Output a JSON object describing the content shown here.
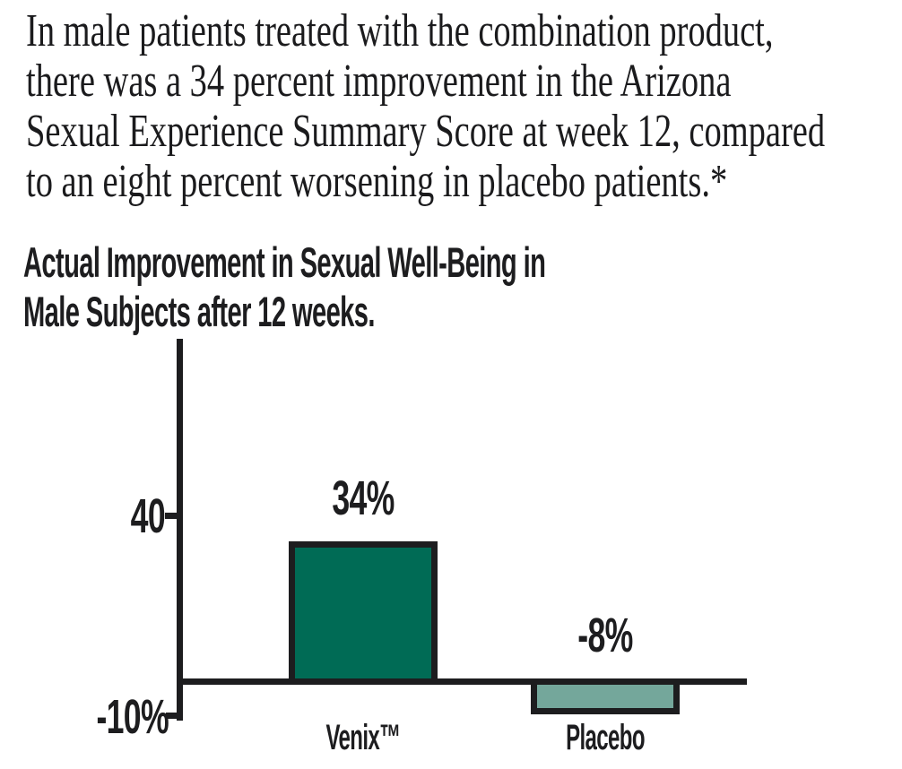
{
  "page": {
    "background": "#ffffff",
    "ink_color": "#1d1d1f"
  },
  "lead_paragraph": {
    "lines": [
      "In male patients treated with the combination product,",
      "there was a 34 percent improvement in the Arizona",
      "Sexual Experience Summary Score at week 12, compared",
      "to an eight percent worsening in placebo patients.*"
    ],
    "footnote_marker": "*"
  },
  "chart_data": {
    "type": "bar",
    "title": "Actual Improvement in Sexual Well-Being in Male Subjects after 12 weeks.",
    "title_lines": [
      "Actual Improvement in Sexual Well-Being in",
      "Male Subjects after 12 weeks."
    ],
    "categories": [
      "Venix™",
      "Placebo"
    ],
    "values": [
      34,
      -8
    ],
    "value_labels": [
      "34%",
      "-8%"
    ],
    "y_ticks": [
      {
        "value": 40,
        "label": "40"
      },
      {
        "value": -10,
        "label": "-10%"
      }
    ],
    "ylim": [
      -10,
      83
    ],
    "xlabel": "",
    "ylabel": "",
    "grid": false,
    "legend": false,
    "baseline": 0,
    "bar_colors": [
      "#006b55",
      "#74a79b"
    ],
    "outline_color": "#1d1d1f"
  }
}
